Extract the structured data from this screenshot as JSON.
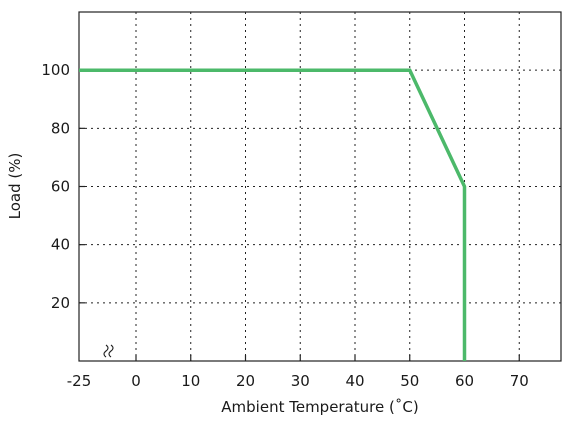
{
  "chart_data": {
    "type": "line",
    "title": "",
    "xlabel": "Ambient Temperature (˚C)",
    "ylabel": "Load (%)",
    "x_ticks": [
      -25,
      0,
      10,
      20,
      30,
      40,
      50,
      60,
      70
    ],
    "x_tick_labels": [
      "-25",
      "0",
      "10",
      "20",
      "30",
      "40",
      "50",
      "60",
      "70"
    ],
    "y_ticks": [
      20,
      40,
      60,
      80,
      100
    ],
    "y_tick_labels": [
      "20",
      "40",
      "60",
      "80",
      "100"
    ],
    "xlim": [
      -25,
      80
    ],
    "ylim": [
      0,
      120
    ],
    "axis_break": {
      "between": [
        -25,
        0
      ],
      "symbol": "double-wavy"
    },
    "grid": true,
    "series": [
      {
        "color": "#4cb96a",
        "points": [
          [
            -25,
            100
          ],
          [
            50,
            100
          ],
          [
            60,
            60
          ],
          [
            60,
            0
          ]
        ]
      }
    ]
  }
}
